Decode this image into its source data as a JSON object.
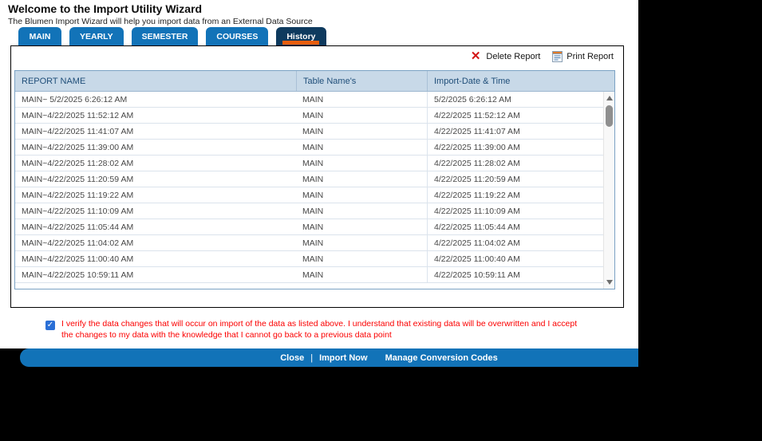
{
  "window": {
    "title": "Welcome to the Import Utility Wizard",
    "subtitle": "The Blumen Import Wizard will help you import data from an External Data Source"
  },
  "tabs": [
    {
      "label": "MAIN",
      "active": false
    },
    {
      "label": "YEARLY",
      "active": false
    },
    {
      "label": "SEMESTER",
      "active": false
    },
    {
      "label": "COURSES",
      "active": false
    },
    {
      "label": "History",
      "active": true
    }
  ],
  "toolbar": {
    "delete_label": "Delete Report",
    "delete_icon": "x-icon",
    "print_label": "Print Report",
    "print_icon": "report-icon"
  },
  "table": {
    "columns": [
      "REPORT NAME",
      "Table Name's",
      "Import-Date & Time"
    ],
    "rows": [
      {
        "report_name": "MAIN~ 5/2/2025 6:26:12 AM",
        "table_name": "MAIN",
        "import_datetime": "5/2/2025 6:26:12 AM"
      },
      {
        "report_name": "MAIN~4/22/2025 11:52:12 AM",
        "table_name": "MAIN",
        "import_datetime": "4/22/2025 11:52:12 AM"
      },
      {
        "report_name": "MAIN~4/22/2025 11:41:07 AM",
        "table_name": "MAIN",
        "import_datetime": "4/22/2025 11:41:07 AM"
      },
      {
        "report_name": "MAIN~4/22/2025 11:39:00 AM",
        "table_name": "MAIN",
        "import_datetime": "4/22/2025 11:39:00 AM"
      },
      {
        "report_name": "MAIN~4/22/2025 11:28:02 AM",
        "table_name": "MAIN",
        "import_datetime": "4/22/2025 11:28:02 AM"
      },
      {
        "report_name": "MAIN~4/22/2025 11:20:59 AM",
        "table_name": "MAIN",
        "import_datetime": "4/22/2025 11:20:59 AM"
      },
      {
        "report_name": "MAIN~4/22/2025 11:19:22 AM",
        "table_name": "MAIN",
        "import_datetime": "4/22/2025 11:19:22 AM"
      },
      {
        "report_name": "MAIN~4/22/2025 11:10:09 AM",
        "table_name": "MAIN",
        "import_datetime": "4/22/2025 11:10:09 AM"
      },
      {
        "report_name": "MAIN~4/22/2025 11:05:44 AM",
        "table_name": "MAIN",
        "import_datetime": "4/22/2025 11:05:44 AM"
      },
      {
        "report_name": "MAIN~4/22/2025 11:04:02 AM",
        "table_name": "MAIN",
        "import_datetime": "4/22/2025 11:04:02 AM"
      },
      {
        "report_name": "MAIN~4/22/2025 11:00:40 AM",
        "table_name": "MAIN",
        "import_datetime": "4/22/2025 11:00:40 AM"
      },
      {
        "report_name": "MAIN~4/22/2025 10:59:11 AM",
        "table_name": "MAIN",
        "import_datetime": "4/22/2025 10:59:11 AM"
      }
    ]
  },
  "confirmation": {
    "checked": true,
    "checkmark": "✓",
    "text": "I verify the data changes that will occur on import of the data as listed above. I understand that existing data will be overwritten and I accept the changes to my data with the knowledge that I cannot go back to a previous data point"
  },
  "footer": {
    "close_label": "Close",
    "divider": "|",
    "import_label": "Import Now",
    "manage_label": "Manage Conversion Codes"
  },
  "colors": {
    "tab_blue": "#1273b8",
    "active_tab_navy": "#0e3a5e",
    "active_tab_accent_orange": "#e85d0d",
    "table_header_bg": "#c8d9e8",
    "table_header_text": "#1f4e79",
    "warning_text_red": "#fb0000",
    "delete_x_red": "#d31616",
    "checkbox_blue": "#2a6fd6",
    "footer_bar_blue": "#1273b8",
    "background_black": "#000000"
  }
}
